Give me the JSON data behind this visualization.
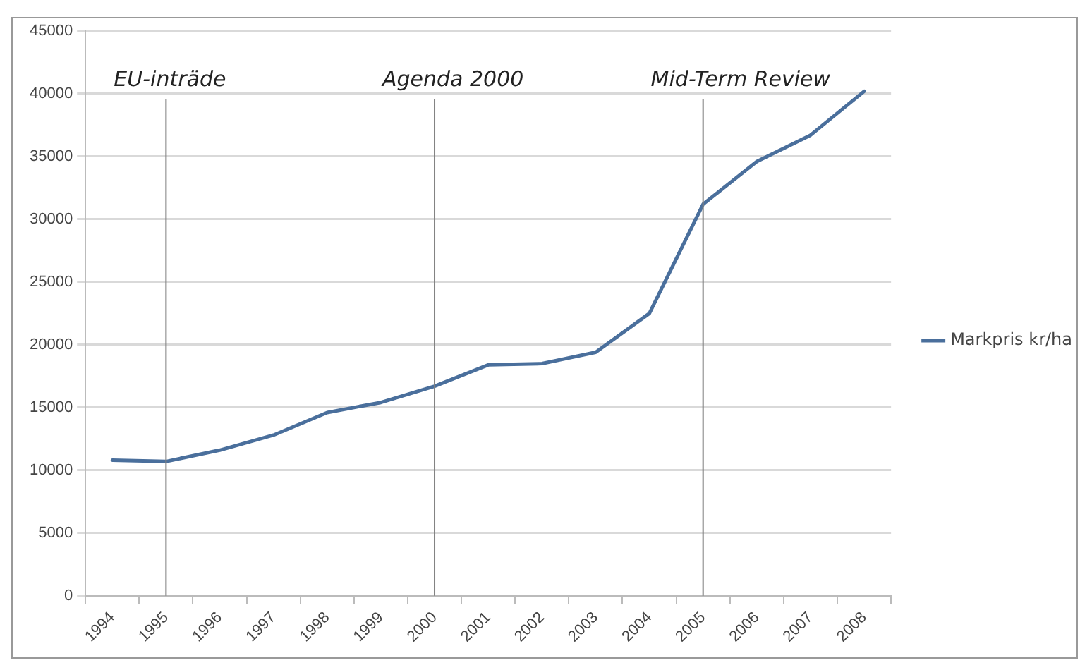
{
  "chart_data": {
    "type": "line",
    "categories": [
      "1994",
      "1995",
      "1996",
      "1997",
      "1998",
      "1999",
      "2000",
      "2001",
      "2002",
      "2003",
      "2004",
      "2005",
      "2006",
      "2007",
      "2008"
    ],
    "series": [
      {
        "name": "Markpris kr/ha",
        "color": "#4a6f9c",
        "values": [
          10800,
          10700,
          11600,
          12800,
          14600,
          15400,
          16700,
          18400,
          18500,
          19400,
          22500,
          31200,
          34600,
          36700,
          40200
        ]
      }
    ],
    "ylim": [
      0,
      45000
    ],
    "yticks": [
      0,
      5000,
      10000,
      15000,
      20000,
      25000,
      30000,
      35000,
      40000,
      45000
    ],
    "grid": "y",
    "legend": "right",
    "marker": "none",
    "line_style": "solid",
    "ref_lines": [
      {
        "axis": "x",
        "value": "1995",
        "label": "EU-inträde",
        "color": "#808080"
      },
      {
        "axis": "x",
        "value": "2000",
        "label": "Agenda 2000",
        "color": "#808080"
      },
      {
        "axis": "x",
        "value": "2005",
        "label": "Mid-Term Review",
        "color": "#808080"
      }
    ]
  }
}
